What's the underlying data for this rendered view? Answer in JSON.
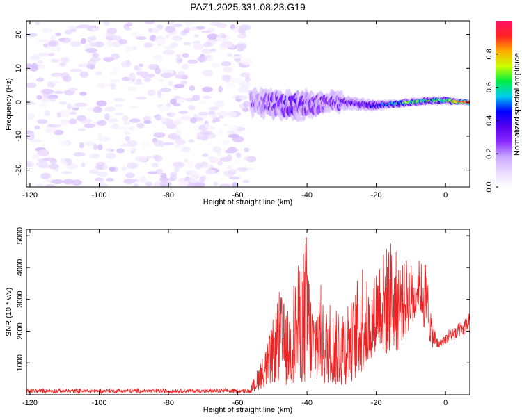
{
  "title": "PAZ1.2025.331.08.23.G19",
  "colors": {
    "snr_line": "#ee2222",
    "colormap": [
      "#ffffff",
      "#e8d8ff",
      "#c9a8ff",
      "#8a2bff",
      "#5500ee",
      "#0000ff",
      "#00ccee",
      "#00ee44",
      "#ccff00",
      "#ffaa00",
      "#ff2222",
      "#ff1166"
    ]
  },
  "chart_data": [
    {
      "type": "heatmap",
      "name": "spectrogram",
      "xlabel": "Height of straight line (km)",
      "ylabel": "Frequency (Hz)",
      "xlim": [
        -121,
        7
      ],
      "ylim": [
        -25,
        24
      ],
      "xticks": [
        -120,
        -100,
        -80,
        -60,
        -40,
        -20,
        0
      ],
      "xtick_labels": [
        "-120",
        "-100",
        "-80",
        "-60",
        "-40",
        "-20",
        "0"
      ],
      "yticks": [
        -20,
        -10,
        0,
        10,
        20
      ],
      "ytick_labels": [
        "-20",
        "-10",
        "0",
        "10",
        "20"
      ],
      "colorbar": {
        "label": "Normalized spectral amplitude",
        "range": [
          0,
          1
        ],
        "ticks": [
          0.0,
          0.2,
          0.4,
          0.6,
          0.8
        ],
        "tick_labels": [
          "0.0",
          "0.2",
          "0.4",
          "0.6",
          "0.8"
        ]
      },
      "regions": {
        "noise_x_range": [
          -121,
          -56
        ],
        "noise_freq_range": [
          -25,
          24
        ],
        "noise_amplitude_range": [
          0.02,
          0.14
        ],
        "signal_x_range": [
          -56,
          7
        ],
        "signal_track": [
          {
            "x": -56,
            "f": 0.0,
            "width": 4.5,
            "amp": 0.22
          },
          {
            "x": -50,
            "f": -0.5,
            "width": 5.0,
            "amp": 0.3
          },
          {
            "x": -45,
            "f": -1.0,
            "width": 5.0,
            "amp": 0.35
          },
          {
            "x": -40,
            "f": -1.0,
            "width": 5.0,
            "amp": 0.3
          },
          {
            "x": -35,
            "f": 0.0,
            "width": 4.0,
            "amp": 0.28
          },
          {
            "x": -30,
            "f": 0.0,
            "width": 3.5,
            "amp": 0.3
          },
          {
            "x": -25,
            "f": -0.5,
            "width": 3.0,
            "amp": 0.35
          },
          {
            "x": -20,
            "f": -1.0,
            "width": 2.5,
            "amp": 0.4
          },
          {
            "x": -15,
            "f": -0.5,
            "width": 2.0,
            "amp": 0.55
          },
          {
            "x": -10,
            "f": 0.0,
            "width": 2.0,
            "amp": 0.65
          },
          {
            "x": -5,
            "f": 0.5,
            "width": 2.0,
            "amp": 0.65
          },
          {
            "x": 0,
            "f": 0.5,
            "width": 2.0,
            "amp": 0.7
          },
          {
            "x": 5,
            "f": 0.0,
            "width": 1.5,
            "amp": 0.9
          }
        ]
      }
    },
    {
      "type": "line",
      "name": "snr",
      "xlabel": "Height of straight line (km)",
      "ylabel": "SNR (10 * v/v)",
      "xlim": [
        -121,
        7
      ],
      "ylim": [
        0,
        5200
      ],
      "xticks": [
        -120,
        -100,
        -80,
        -60,
        -40,
        -20,
        0
      ],
      "xtick_labels": [
        "-120",
        "-100",
        "-80",
        "-60",
        "-40",
        "-20",
        "0"
      ],
      "yticks": [
        1000,
        2000,
        3000,
        4000,
        5000
      ],
      "ytick_labels": [
        "1000",
        "2000",
        "3000",
        "4000",
        "5000"
      ],
      "series": [
        {
          "name": "SNR",
          "baseline_noise": {
            "x_range": [
              -121,
              -56
            ],
            "mean": 120,
            "spread": 90
          },
          "x": [
            -56,
            -55,
            -54,
            -53,
            -52,
            -51,
            -50,
            -49,
            -48,
            -47,
            -46,
            -45,
            -44,
            -43,
            -42,
            -41,
            -40,
            -39,
            -38,
            -37,
            -36,
            -35,
            -34,
            -33,
            -32,
            -31,
            -30,
            -29,
            -28,
            -27,
            -26,
            -25,
            -24,
            -23,
            -22,
            -21,
            -20,
            -19,
            -18,
            -17,
            -16,
            -15,
            -14,
            -13,
            -12,
            -11,
            -10,
            -9,
            -8,
            -7,
            -6,
            -5,
            -4,
            -3,
            -2,
            -1,
            0,
            1,
            2,
            3,
            4,
            5,
            6,
            7
          ],
          "y_upper": [
            350,
            600,
            900,
            1200,
            1500,
            1800,
            2300,
            2700,
            3300,
            3100,
            2600,
            2800,
            3600,
            3900,
            4300,
            4700,
            5200,
            3300,
            2800,
            3200,
            3500,
            2600,
            2900,
            3100,
            2400,
            3000,
            3100,
            2800,
            3300,
            2900,
            3400,
            3800,
            4300,
            3800,
            3200,
            3500,
            4100,
            4600,
            4500,
            4700,
            5100,
            4400,
            4600,
            4300,
            4100,
            4400,
            4200,
            3800,
            4300,
            4200,
            4300,
            3800,
            2400,
            2100,
            1700,
            1800,
            1900,
            2100,
            2200,
            2100,
            2300,
            2300,
            2500,
            2800
          ],
          "y_lower": [
            60,
            100,
            150,
            200,
            250,
            300,
            350,
            350,
            400,
            350,
            300,
            300,
            350,
            400,
            350,
            300,
            300,
            300,
            350,
            350,
            400,
            300,
            350,
            400,
            300,
            300,
            250,
            300,
            350,
            400,
            450,
            500,
            600,
            800,
            1000,
            1200,
            1400,
            1600,
            1200,
            1100,
            1300,
            1500,
            1300,
            1600,
            1800,
            1900,
            2100,
            2200,
            2800,
            2300,
            2000,
            1700,
            1500,
            1400,
            1450,
            1550,
            1600,
            1600,
            1700,
            1700,
            1800,
            1800,
            1900,
            2000
          ]
        }
      ]
    }
  ]
}
